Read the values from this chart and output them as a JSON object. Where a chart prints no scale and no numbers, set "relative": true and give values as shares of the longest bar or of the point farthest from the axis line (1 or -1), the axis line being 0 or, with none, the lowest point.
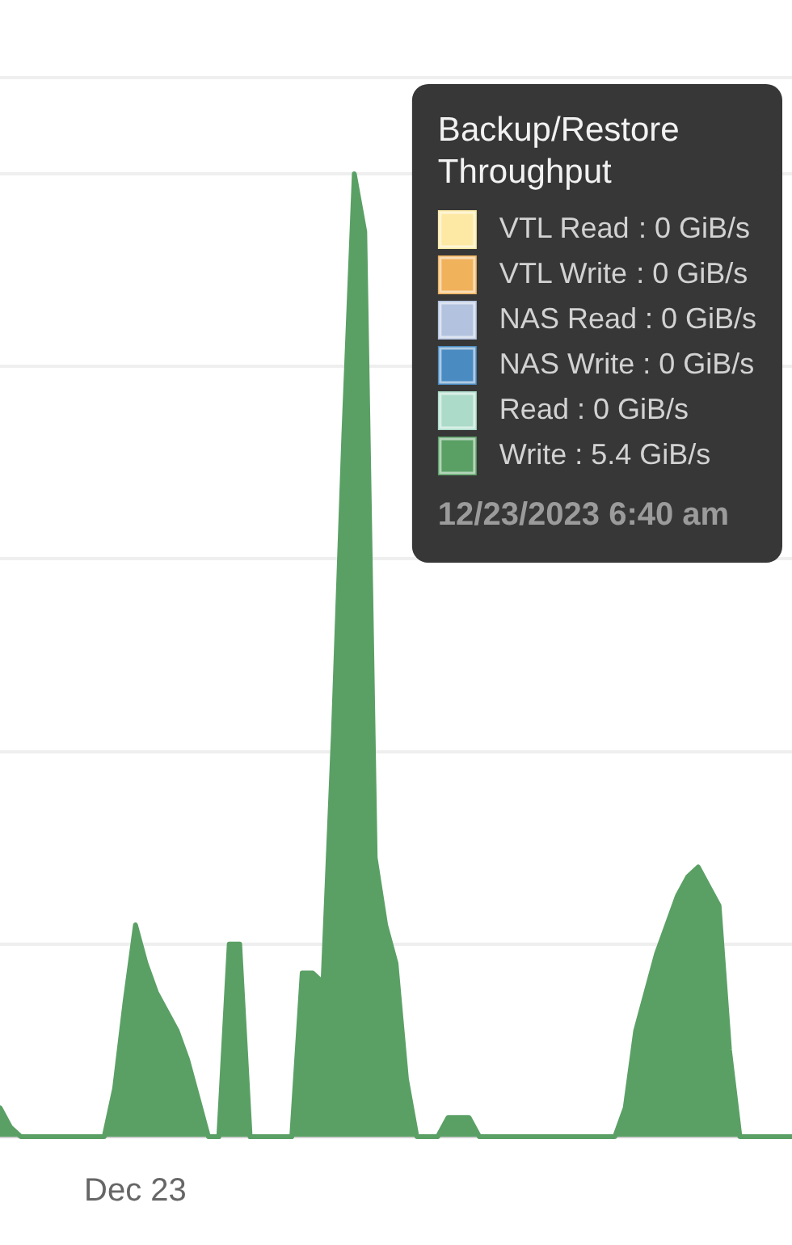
{
  "chart_data": {
    "type": "area",
    "relative": true,
    "legend": "top right",
    "legend_title": "Backup/Restore Throughput",
    "marker": "none",
    "grid": true,
    "categories": [
      null,
      null,
      null,
      null,
      null,
      null,
      null,
      null,
      null,
      null,
      null,
      null,
      null,
      null,
      null,
      null,
      null,
      null,
      null,
      null,
      null,
      null,
      null,
      null,
      null,
      null,
      null,
      null,
      null,
      null,
      null,
      null,
      null,
      null,
      null,
      null,
      null,
      null,
      null,
      null,
      null,
      null,
      null,
      null,
      null,
      null,
      null,
      null,
      null,
      null,
      null,
      null,
      null,
      null,
      null,
      null,
      null,
      null,
      null,
      null,
      null,
      null,
      null,
      null,
      null,
      null,
      null,
      null,
      null,
      null,
      null,
      null,
      null,
      null,
      null,
      null,
      null
    ],
    "series": [
      {
        "name": "VTL Read",
        "color": "#fde9a4",
        "values": [
          null,
          null,
          null,
          null,
          null,
          null,
          null,
          null,
          null,
          null,
          null,
          null,
          null,
          null,
          null,
          null,
          null,
          null,
          null,
          null,
          null,
          null,
          null,
          null,
          null,
          null,
          null,
          null,
          null,
          null,
          null,
          null,
          null,
          null,
          null,
          null,
          null,
          null,
          null,
          null,
          null,
          null,
          null,
          null,
          null,
          null,
          null,
          null,
          null,
          null,
          null,
          null,
          null,
          null,
          null,
          null,
          null,
          null,
          null,
          null,
          null,
          null,
          null,
          null,
          null,
          null,
          null,
          null,
          null,
          null,
          null,
          null,
          null,
          null,
          null,
          null,
          null
        ]
      },
      {
        "name": "VTL Write",
        "color": "#f1b25c",
        "values": [
          null,
          null,
          null,
          null,
          null,
          null,
          null,
          null,
          null,
          null,
          null,
          null,
          null,
          null,
          null,
          null,
          null,
          null,
          null,
          null,
          null,
          null,
          null,
          null,
          null,
          null,
          null,
          null,
          null,
          null,
          null,
          null,
          null,
          null,
          null,
          null,
          null,
          null,
          null,
          null,
          null,
          null,
          null,
          null,
          null,
          null,
          null,
          null,
          null,
          null,
          null,
          null,
          null,
          null,
          null,
          null,
          null,
          null,
          null,
          null,
          null,
          null,
          null,
          null,
          null,
          null,
          null,
          null,
          null,
          null,
          null,
          null,
          null,
          null,
          null,
          null,
          null
        ]
      },
      {
        "name": "NAS Read",
        "color": "#b3c3df",
        "values": [
          null,
          null,
          null,
          null,
          null,
          null,
          null,
          null,
          null,
          null,
          null,
          null,
          null,
          null,
          null,
          null,
          null,
          null,
          null,
          null,
          null,
          null,
          null,
          null,
          null,
          null,
          null,
          null,
          null,
          null,
          null,
          null,
          null,
          null,
          null,
          null,
          null,
          null,
          null,
          null,
          null,
          null,
          null,
          null,
          null,
          null,
          null,
          null,
          null,
          null,
          null,
          null,
          null,
          null,
          null,
          null,
          null,
          null,
          null,
          null,
          null,
          null,
          null,
          null,
          null,
          null,
          null,
          null,
          null,
          null,
          null,
          null,
          null,
          null,
          null,
          null,
          null
        ]
      },
      {
        "name": "NAS Write",
        "color": "#4a8bc2",
        "values": [
          null,
          null,
          null,
          null,
          null,
          null,
          null,
          null,
          null,
          null,
          null,
          null,
          null,
          null,
          null,
          null,
          null,
          null,
          null,
          null,
          null,
          null,
          null,
          null,
          null,
          null,
          null,
          null,
          null,
          null,
          null,
          null,
          null,
          null,
          null,
          null,
          null,
          null,
          null,
          null,
          null,
          null,
          null,
          null,
          null,
          null,
          null,
          null,
          null,
          null,
          null,
          null,
          null,
          null,
          null,
          null,
          null,
          null,
          null,
          null,
          null,
          null,
          null,
          null,
          null,
          null,
          null,
          null,
          null,
          null,
          null,
          null,
          null,
          null,
          null,
          null,
          null
        ]
      },
      {
        "name": "Read",
        "color": "#acdcc9",
        "values": [
          null,
          null,
          null,
          null,
          null,
          null,
          null,
          null,
          null,
          null,
          null,
          null,
          null,
          null,
          null,
          null,
          null,
          null,
          null,
          null,
          null,
          null,
          null,
          null,
          null,
          null,
          null,
          null,
          null,
          null,
          null,
          null,
          null,
          null,
          null,
          null,
          null,
          null,
          null,
          null,
          null,
          null,
          null,
          null,
          null,
          null,
          null,
          null,
          null,
          null,
          null,
          null,
          null,
          null,
          null,
          null,
          null,
          null,
          null,
          null,
          null,
          null,
          null,
          null,
          null,
          null,
          null,
          null,
          null,
          null,
          null,
          null,
          null,
          null,
          null,
          null,
          null
        ]
      },
      {
        "name": "Write",
        "color": "#5aa065",
        "values": [
          0.03,
          0.01,
          0,
          0,
          0,
          0,
          0,
          0,
          0,
          0,
          0,
          0.05,
          0.14,
          0.22,
          0.18,
          0.15,
          0.13,
          0.11,
          0.08,
          0.04,
          0,
          0,
          0.2,
          0.2,
          0,
          0,
          0,
          0,
          0,
          0.17,
          0.17,
          0.16,
          0.42,
          0.73,
          1,
          0.94,
          0.29,
          0.22,
          0.18,
          0.06,
          0,
          0,
          0,
          0.02,
          0.02,
          0.02,
          0,
          0,
          0,
          0,
          0,
          0,
          0,
          0,
          0,
          0,
          0,
          0,
          0,
          0,
          0.03,
          0.11,
          0.15,
          0.19,
          0.22,
          0.25,
          0.27,
          0.28,
          0.26,
          0.24,
          0.09,
          0,
          0,
          0,
          0,
          0,
          0
        ]
      }
    ],
    "annotations": [
      ": 0 GiB/s",
      ": 0 GiB/s",
      ": 0 GiB/s",
      ": 0 GiB/s",
      ": 0 GiB/s",
      ": 5.4 GiB/s",
      "12/23/2023 6:40 am",
      "Dec 23"
    ]
  }
}
